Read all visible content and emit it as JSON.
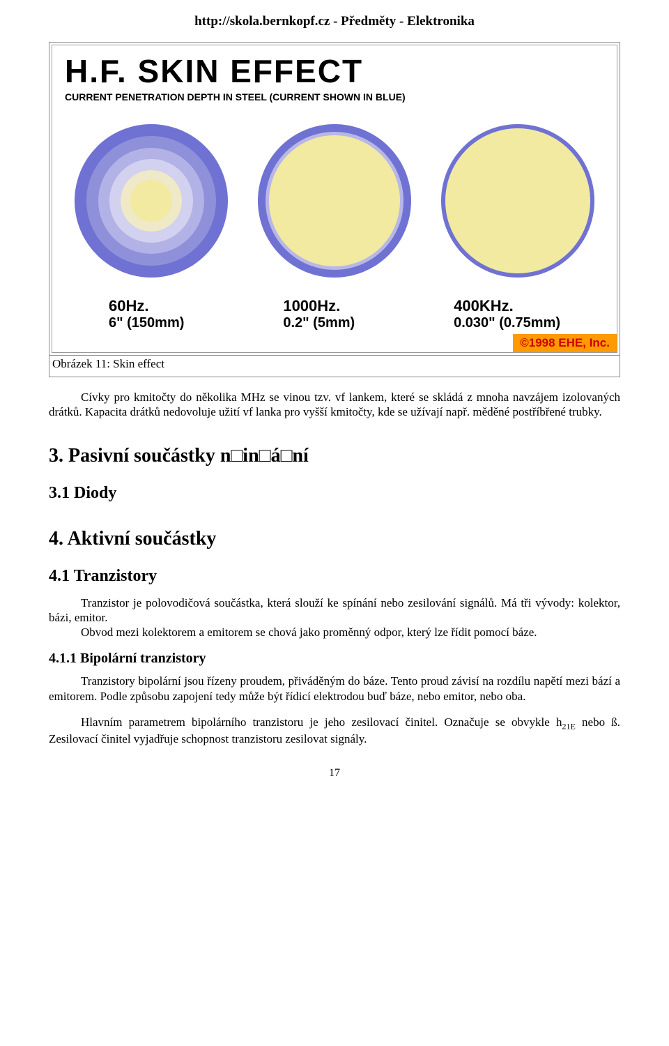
{
  "header": {
    "url_text": "http://skola.bernkopf.cz - Předměty - Elektronika"
  },
  "figure": {
    "title": "H.F. SKIN EFFECT",
    "subtitle": "CURRENT PENETRATION DEPTH IN STEEL (CURRENT SHOWN IN BLUE)",
    "background_color": "#ffffff",
    "title_color": "#000000",
    "title_fontsize": 46,
    "subtitle_fontsize": 14,
    "circles": [
      {
        "freq_label": "60Hz.",
        "depth_label": "6\" (150mm)",
        "outer_radius": 110,
        "rings": [
          {
            "r": 110,
            "fill": "#6f72d2"
          },
          {
            "r": 93,
            "fill": "#8f90da"
          },
          {
            "r": 76,
            "fill": "#b2b2e6"
          },
          {
            "r": 60,
            "fill": "#d2d1ef"
          },
          {
            "r": 44,
            "fill": "#efe9c8"
          },
          {
            "r": 30,
            "fill": "#f1eaa0"
          }
        ]
      },
      {
        "freq_label": "1000Hz.",
        "depth_label": "0.2\" (5mm)",
        "outer_radius": 110,
        "rings": [
          {
            "r": 110,
            "fill": "#6f72d2"
          },
          {
            "r": 99,
            "fill": "#b8b7e7"
          },
          {
            "r": 94,
            "fill": "#f1eaa0"
          }
        ]
      },
      {
        "freq_label": "400KHz.",
        "depth_label": "0.030\" (0.75mm)",
        "outer_radius": 110,
        "rings": [
          {
            "r": 110,
            "fill": "#6f72d2"
          },
          {
            "r": 104,
            "fill": "#f1eaa0"
          }
        ]
      }
    ],
    "copyright": {
      "text": "©1998 EHE, Inc.",
      "bg_color": "#ff9a00",
      "text_color": "#cc0000"
    },
    "caption": "Obrázek 11: Skin effect"
  },
  "body": {
    "para1_a": "Cívky pro kmitočty do několika MHz se vinou tzv. vf lankem, které se skládá z mnoha navzájem izolovaných drátků. Kapacita drátků nedovoluje užití vf lanka pro vyšší kmitočty, kde se užívají např. měděné postříbřené trubky.",
    "h3": "3. Pasivní součástky n□in□á□ní",
    "h3_1": "3.1 Diody",
    "h4": "4. Aktivní součástky",
    "h4_1": "4.1 Tranzistory",
    "para_tranz_a": "Tranzistor je polovodičová součástka, která slouží ke spínání nebo zesilování signálů. Má tři vývody: kolektor, bázi, emitor.",
    "para_tranz_b": "Obvod mezi kolektorem a emitorem se chová jako proměnný odpor, který lze řídit pomocí báze.",
    "h4_1_1": "4.1.1 Bipolární tranzistory",
    "para_bip_a": "Tranzistory bipolární jsou řízeny proudem, přiváděným do báze. Tento proud závisí na rozdílu napětí mezi bází a emitorem. Podle způsobu zapojení tedy může být řídicí elektrodou buď báze, nebo emitor, nebo oba.",
    "para_bip_b1": "Hlavním parametrem bipolárního tranzistoru je jeho zesilovací činitel. Označuje se obvykle h",
    "para_bip_b_sub": "21E",
    "para_bip_b2": " nebo ß. Zesilovací činitel vyjadřuje schopnost tranzistoru zesilovat signály."
  },
  "page_number": "17"
}
